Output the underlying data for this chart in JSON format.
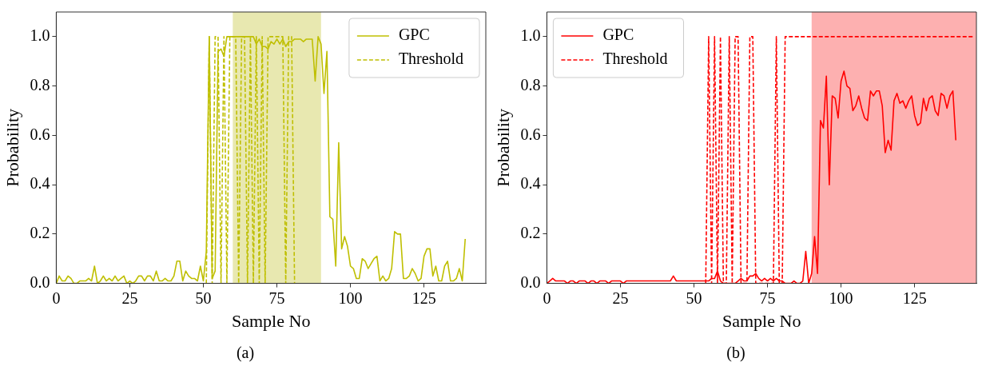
{
  "chart_data": [
    {
      "type": "line",
      "xlabel": "Sample No",
      "ylabel": "Probability",
      "annotations": [
        "(a)"
      ],
      "x": [
        0,
        1,
        2,
        3,
        4,
        5,
        6,
        7,
        8,
        9,
        10,
        11,
        12,
        13,
        14,
        15,
        16,
        17,
        18,
        19,
        20,
        21,
        22,
        23,
        24,
        25,
        26,
        27,
        28,
        29,
        30,
        31,
        32,
        33,
        34,
        35,
        36,
        37,
        38,
        39,
        40,
        41,
        42,
        43,
        44,
        45,
        46,
        47,
        48,
        49,
        50,
        51,
        52,
        53,
        54,
        55,
        56,
        57,
        58,
        59,
        60,
        61,
        62,
        63,
        64,
        65,
        66,
        67,
        68,
        69,
        70,
        71,
        72,
        73,
        74,
        75,
        76,
        77,
        78,
        79,
        80,
        81,
        82,
        83,
        84,
        85,
        86,
        87,
        88,
        89,
        90,
        91,
        92,
        93,
        94,
        95,
        96,
        97,
        98,
        99,
        100,
        101,
        102,
        103,
        104,
        105,
        106,
        107,
        108,
        109,
        110,
        111,
        112,
        113,
        114,
        115,
        116,
        117,
        118,
        119,
        120,
        121,
        122,
        123,
        124,
        125,
        126,
        127,
        128,
        129,
        130,
        131,
        132,
        133,
        134,
        135,
        136,
        137,
        138,
        139
      ],
      "series": [
        {
          "name": "GPC",
          "color": "#bfbf00",
          "line_style": "solid",
          "values": [
            0.0,
            0.03,
            0.01,
            0.01,
            0.03,
            0.02,
            0.0,
            0.0,
            0.01,
            0.01,
            0.01,
            0.02,
            0.01,
            0.07,
            0.0,
            0.01,
            0.03,
            0.01,
            0.02,
            0.01,
            0.03,
            0.01,
            0.02,
            0.03,
            0.0,
            0.01,
            0.0,
            0.01,
            0.03,
            0.03,
            0.01,
            0.03,
            0.03,
            0.01,
            0.05,
            0.01,
            0.01,
            0.02,
            0.01,
            0.01,
            0.03,
            0.09,
            0.09,
            0.01,
            0.05,
            0.03,
            0.02,
            0.02,
            0.01,
            0.07,
            0.01,
            0.13,
            1.0,
            0.02,
            0.05,
            0.94,
            0.95,
            0.92,
            1.0,
            1.0,
            1.0,
            1.0,
            1.0,
            1.0,
            1.0,
            1.0,
            1.0,
            1.0,
            0.97,
            0.99,
            0.96,
            0.96,
            0.95,
            0.98,
            0.97,
            0.99,
            0.97,
            0.99,
            0.96,
            0.98,
            0.98,
            0.99,
            0.99,
            0.99,
            0.98,
            0.99,
            0.99,
            0.99,
            0.82,
            1.0,
            0.97,
            0.77,
            0.94,
            0.27,
            0.26,
            0.07,
            0.57,
            0.14,
            0.19,
            0.15,
            0.07,
            0.06,
            0.02,
            0.02,
            0.1,
            0.09,
            0.06,
            0.08,
            0.1,
            0.11,
            0.01,
            0.03,
            0.01,
            0.02,
            0.06,
            0.21,
            0.2,
            0.2,
            0.02,
            0.02,
            0.03,
            0.06,
            0.04,
            0.01,
            0.02,
            0.11,
            0.14,
            0.14,
            0.03,
            0.07,
            0.01,
            0.01,
            0.07,
            0.09,
            0.01,
            0.01,
            0.02,
            0.06,
            0.01,
            0.18
          ]
        },
        {
          "name": "Threshold",
          "color": "#bfbf00",
          "line_style": "dashed",
          "values": [
            null,
            null,
            null,
            null,
            null,
            null,
            null,
            null,
            null,
            null,
            null,
            null,
            null,
            null,
            null,
            null,
            null,
            null,
            null,
            null,
            null,
            null,
            null,
            null,
            null,
            null,
            null,
            null,
            null,
            null,
            null,
            null,
            null,
            null,
            null,
            null,
            null,
            null,
            null,
            null,
            null,
            null,
            null,
            null,
            null,
            null,
            null,
            null,
            null,
            null,
            null,
            0,
            1,
            0,
            1,
            1,
            0,
            1,
            0,
            1,
            1,
            1,
            0,
            1,
            1,
            0,
            1,
            0,
            1,
            0,
            1,
            0,
            1,
            1,
            1,
            1,
            1,
            1,
            0,
            1,
            1,
            0,
            null,
            null,
            null,
            null,
            null,
            null,
            null,
            null,
            null,
            null,
            null,
            null,
            null,
            null,
            null,
            null,
            null,
            null,
            null,
            null,
            null,
            null,
            null,
            null,
            null,
            null,
            null,
            null,
            null,
            null,
            null,
            null,
            null,
            null,
            null,
            null,
            null,
            null,
            null,
            null,
            null,
            null,
            null,
            null,
            null,
            null,
            null,
            null,
            null,
            null,
            null,
            null,
            null,
            null,
            null,
            null,
            null,
            null
          ]
        }
      ],
      "bands": [
        {
          "axis": "x",
          "from": 60,
          "to": 90,
          "color": "#e8e8b0"
        }
      ],
      "xlim": [
        0,
        146
      ],
      "xticks": [
        0,
        25,
        50,
        75,
        100,
        125
      ],
      "ylim": [
        0,
        1.1
      ],
      "yticks": [
        {
          "value": 0,
          "label": "0.0"
        },
        {
          "value": 0.2,
          "label": "0.2"
        },
        {
          "value": 0.4,
          "label": "0.4"
        },
        {
          "value": 0.6,
          "label": "0.6"
        },
        {
          "value": 0.8,
          "label": "0.8"
        },
        {
          "value": 1,
          "label": "1.0"
        }
      ],
      "grid": false,
      "legend": "top right",
      "marker": "none"
    },
    {
      "type": "line",
      "xlabel": "Sample No",
      "ylabel": "Probability",
      "annotations": [
        "(b)"
      ],
      "x": [
        0,
        1,
        2,
        3,
        4,
        5,
        6,
        7,
        8,
        9,
        10,
        11,
        12,
        13,
        14,
        15,
        16,
        17,
        18,
        19,
        20,
        21,
        22,
        23,
        24,
        25,
        26,
        27,
        28,
        29,
        30,
        31,
        32,
        33,
        34,
        35,
        36,
        37,
        38,
        39,
        40,
        41,
        42,
        43,
        44,
        45,
        46,
        47,
        48,
        49,
        50,
        51,
        52,
        53,
        54,
        55,
        56,
        57,
        58,
        59,
        60,
        61,
        62,
        63,
        64,
        65,
        66,
        67,
        68,
        69,
        70,
        71,
        72,
        73,
        74,
        75,
        76,
        77,
        78,
        79,
        80,
        81,
        82,
        83,
        84,
        85,
        86,
        87,
        88,
        89,
        90,
        91,
        92,
        93,
        94,
        95,
        96,
        97,
        98,
        99,
        100,
        101,
        102,
        103,
        104,
        105,
        106,
        107,
        108,
        109,
        110,
        111,
        112,
        113,
        114,
        115,
        116,
        117,
        118,
        119,
        120,
        121,
        122,
        123,
        124,
        125,
        126,
        127,
        128,
        129,
        130,
        131,
        132,
        133,
        134,
        135,
        136,
        137,
        138,
        139,
        140,
        141,
        142,
        143,
        144,
        145
      ],
      "series": [
        {
          "name": "GPC",
          "color": "#ff0000",
          "line_style": "solid",
          "values": [
            0.0,
            0.01,
            0.02,
            0.01,
            0.01,
            0.01,
            0.01,
            0.0,
            0.01,
            0.01,
            0.0,
            0.01,
            0.01,
            0.01,
            0.0,
            0.01,
            0.01,
            0.0,
            0.01,
            0.01,
            0.01,
            0.0,
            0.01,
            0.01,
            0.01,
            0.01,
            0.0,
            0.01,
            0.01,
            0.01,
            0.01,
            0.01,
            0.01,
            0.01,
            0.01,
            0.01,
            0.01,
            0.01,
            0.01,
            0.01,
            0.01,
            0.01,
            0.01,
            0.03,
            0.01,
            0.01,
            0.01,
            0.01,
            0.01,
            0.01,
            0.01,
            0.01,
            0.01,
            0.01,
            0.01,
            0.01,
            0.02,
            0.02,
            0.05,
            0.01,
            0.0,
            0.0,
            0.0,
            0.0,
            0.0,
            0.01,
            0.02,
            0.01,
            0.01,
            0.03,
            0.03,
            0.04,
            0.02,
            0.01,
            0.02,
            0.01,
            0.02,
            0.01,
            0.02,
            0.01,
            0.01,
            0.0,
            0.0,
            0.0,
            0.01,
            0.0,
            0.0,
            0.01,
            0.13,
            0.0,
            0.04,
            0.19,
            0.04,
            0.66,
            0.63,
            0.84,
            0.4,
            0.76,
            0.75,
            0.67,
            0.82,
            0.86,
            0.8,
            0.79,
            0.7,
            0.72,
            0.76,
            0.71,
            0.67,
            0.66,
            0.78,
            0.76,
            0.78,
            0.78,
            0.72,
            0.53,
            0.58,
            0.54,
            0.74,
            0.77,
            0.73,
            0.74,
            0.71,
            0.74,
            0.76,
            0.68,
            0.64,
            0.65,
            0.75,
            0.7,
            0.75,
            0.76,
            0.7,
            0.68,
            0.77,
            0.76,
            0.71,
            0.76,
            0.78,
            0.58,
            null,
            null,
            null,
            null,
            null,
            null
          ]
        },
        {
          "name": "Threshold",
          "color": "#ff0000",
          "line_style": "dashed",
          "values": [
            null,
            null,
            null,
            null,
            null,
            null,
            null,
            null,
            null,
            null,
            null,
            null,
            null,
            null,
            null,
            null,
            null,
            null,
            null,
            null,
            null,
            null,
            null,
            null,
            null,
            null,
            null,
            null,
            null,
            null,
            null,
            null,
            null,
            null,
            null,
            null,
            null,
            null,
            null,
            null,
            null,
            null,
            null,
            null,
            null,
            null,
            null,
            null,
            null,
            null,
            null,
            null,
            null,
            null,
            0,
            1,
            0,
            1,
            0,
            1,
            0,
            0,
            1,
            0,
            1,
            1,
            0,
            0,
            0,
            1,
            1,
            0,
            0,
            0,
            0,
            0,
            0,
            0,
            1,
            0,
            0,
            1,
            1,
            1,
            1,
            1,
            1,
            1,
            1,
            1,
            1,
            1,
            1,
            1,
            1,
            1,
            1,
            1,
            1,
            1,
            1,
            1,
            1,
            1,
            1,
            1,
            1,
            1,
            1,
            1,
            1,
            1,
            1,
            1,
            1,
            1,
            1,
            1,
            1,
            1,
            1,
            1,
            1,
            1,
            1,
            1,
            1,
            1,
            1,
            1,
            1,
            1,
            1,
            1,
            1,
            1,
            1,
            1,
            1,
            1,
            1,
            1,
            1,
            1,
            1,
            1
          ]
        }
      ],
      "bands": [
        {
          "axis": "x",
          "from": 90,
          "to": 146,
          "color": "#fdb0b0"
        }
      ],
      "xlim": [
        0,
        146
      ],
      "xticks": [
        0,
        25,
        50,
        75,
        100,
        125
      ],
      "ylim": [
        0,
        1.1
      ],
      "yticks": [
        {
          "value": 0,
          "label": "0.0"
        },
        {
          "value": 0.2,
          "label": "0.2"
        },
        {
          "value": 0.4,
          "label": "0.4"
        },
        {
          "value": 0.6,
          "label": "0.6"
        },
        {
          "value": 0.8,
          "label": "0.8"
        },
        {
          "value": 1,
          "label": "1.0"
        }
      ],
      "grid": false,
      "legend": "top left",
      "marker": "none"
    }
  ]
}
